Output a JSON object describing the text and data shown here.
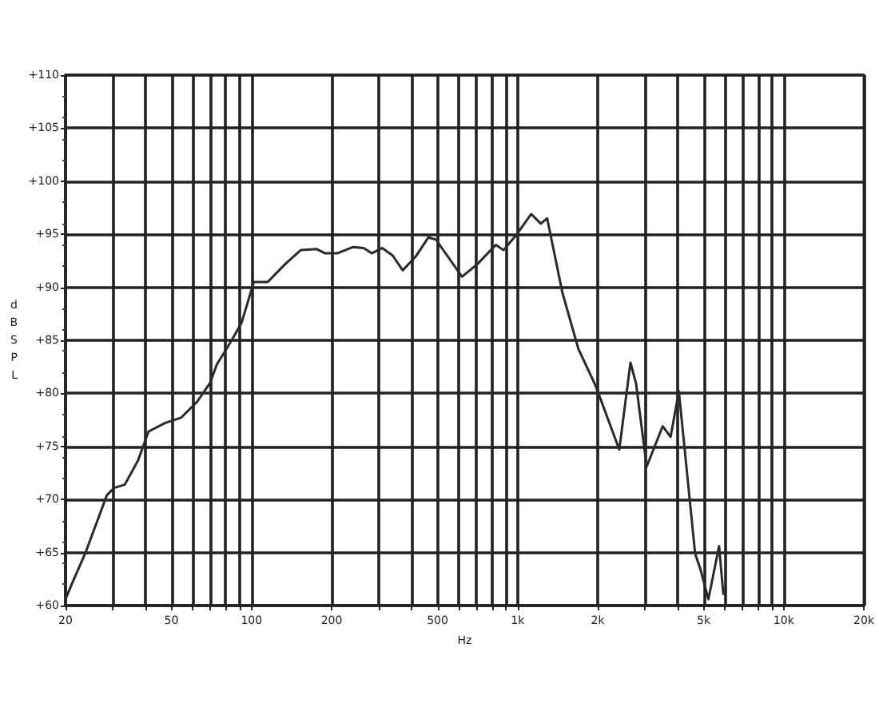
{
  "chart_data": {
    "type": "line",
    "xlabel": "Hz",
    "ylabel": "dB SPL",
    "log": "x",
    "grid": true,
    "marker": "none",
    "line_style": "solid",
    "xlim": [
      20,
      20000
    ],
    "ylim": [
      60,
      110
    ],
    "xticks": [
      20,
      {
        "value": 30,
        "label": null
      },
      {
        "value": 40,
        "label": null
      },
      50,
      {
        "value": 60,
        "label": null
      },
      {
        "value": 70,
        "label": null
      },
      {
        "value": 80,
        "label": null
      },
      {
        "value": 90,
        "label": null
      },
      100,
      200,
      {
        "value": 300,
        "label": null
      },
      {
        "value": 400,
        "label": null
      },
      500,
      {
        "value": 600,
        "label": null
      },
      {
        "value": 700,
        "label": null
      },
      {
        "value": 800,
        "label": null
      },
      {
        "value": 900,
        "label": null
      },
      {
        "value": 1000,
        "label": "1k"
      },
      {
        "value": 2000,
        "label": "2k"
      },
      {
        "value": 3000,
        "label": null
      },
      {
        "value": 4000,
        "label": null
      },
      {
        "value": 5000,
        "label": "5k"
      },
      {
        "value": 6000,
        "label": null
      },
      {
        "value": 7000,
        "label": null
      },
      {
        "value": 8000,
        "label": null
      },
      {
        "value": 9000,
        "label": null
      },
      {
        "value": 10000,
        "label": "10k"
      },
      {
        "value": 20000,
        "label": "20k"
      }
    ],
    "yticks": [
      {
        "value": 60,
        "label": "+60"
      },
      {
        "value": 65,
        "label": "+65"
      },
      {
        "value": 70,
        "label": "+70"
      },
      {
        "value": 75,
        "label": "+75"
      },
      {
        "value": 80,
        "label": "+80"
      },
      {
        "value": 85,
        "label": "+85"
      },
      {
        "value": 90,
        "label": "+90"
      },
      {
        "value": 95,
        "label": "+95"
      },
      {
        "value": 100,
        "label": "+100"
      },
      {
        "value": 105,
        "label": "+105"
      },
      {
        "value": 110,
        "label": "+110"
      }
    ],
    "series": [
      {
        "color": "#2a2a2a",
        "x": [
          20,
          21.1,
          23.7,
          26,
          28.6,
          30.5,
          33.4,
          37.5,
          41,
          47.2,
          54.3,
          62.4,
          69.9,
          74,
          84.2,
          91.9,
          102,
          115,
          134,
          153,
          176,
          189,
          210,
          241,
          264,
          283,
          310,
          339,
          370,
          414,
          462,
          494,
          519,
          618,
          707,
          828,
          885,
          993,
          1125,
          1222,
          1291,
          1473,
          1691,
          1965,
          2410,
          2655,
          2787,
          3054,
          3509,
          3758,
          4035,
          4645,
          4865,
          5212,
          5714,
          5930
        ],
        "values": [
          60.6,
          62,
          64.9,
          67.6,
          70.4,
          71.1,
          71.4,
          73.7,
          76.4,
          77.2,
          77.7,
          79.2,
          81,
          82.7,
          85,
          86.7,
          90.5,
          90.5,
          92.2,
          93.5,
          93.6,
          93.2,
          93.2,
          93.8,
          93.7,
          93.2,
          93.7,
          93,
          91.6,
          92.9,
          94.7,
          94.5,
          93.7,
          91,
          92.2,
          94,
          93.5,
          95,
          96.9,
          96,
          96.5,
          89.5,
          84.2,
          80.7,
          74.7,
          82.9,
          80.9,
          73.1,
          76.9,
          75.9,
          80.2,
          64.9,
          63.4,
          60.6,
          65.6,
          61.1
        ]
      }
    ]
  }
}
